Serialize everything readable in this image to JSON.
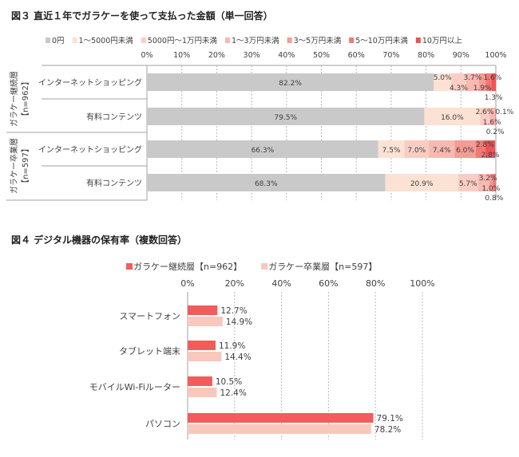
{
  "chart_data": [
    {
      "type": "bar",
      "stacked": true,
      "orientation": "horizontal",
      "title": "図３ 直近１年でガラケーを使って支払った金額（単一回答）",
      "xlim": [
        0,
        100
      ],
      "ticks": [
        "0%",
        "10%",
        "20%",
        "30%",
        "40%",
        "50%",
        "60%",
        "70%",
        "80%",
        "90%",
        "100%"
      ],
      "legend_position": "top",
      "groups": [
        {
          "label": "ガラケー継続層",
          "n": "【n=962】"
        },
        {
          "label": "ガラケー卒業層",
          "n": "【n=597】"
        }
      ],
      "categories": [
        "インターネットショッピング",
        "有料コンテンツ",
        "インターネットショッピング",
        "有料コンテンツ"
      ],
      "category_groups": [
        0,
        0,
        1,
        1
      ],
      "series": [
        {
          "name": "0円",
          "color": "#c9c9c9",
          "values": [
            82.2,
            79.5,
            66.3,
            68.3
          ]
        },
        {
          "name": "1～5000円未満",
          "color": "#fbe2d4",
          "values": [
            5.0,
            16.0,
            7.5,
            20.9
          ]
        },
        {
          "name": "5000円～1万円未満",
          "color": "#f9cdc4",
          "values": [
            4.3,
            2.6,
            7.0,
            5.7
          ]
        },
        {
          "name": "1～3万円未満",
          "color": "#f7b9b1",
          "values": [
            3.7,
            1.6,
            7.4,
            3.2
          ]
        },
        {
          "name": "3～5万円未満",
          "color": "#f59c94",
          "values": [
            1.9,
            0.2,
            6.0,
            1.0
          ]
        },
        {
          "name": "5～10万円未満",
          "color": "#f27875",
          "values": [
            1.6,
            0.1,
            2.8,
            0.8
          ]
        },
        {
          "name": "10万円以上",
          "color": "#ee5252",
          "values": [
            1.3,
            0,
            2.8,
            0
          ]
        }
      ]
    },
    {
      "type": "bar",
      "orientation": "horizontal",
      "title": "図４ デジタル機器の保有率（複数回答）",
      "xlim": [
        0,
        100
      ],
      "ticks": [
        "0%",
        "20%",
        "40%",
        "60%",
        "80%",
        "100%"
      ],
      "legend_position": "top",
      "categories": [
        "スマートフォン",
        "タブレット端末",
        "モバイルWi-Fiルーター",
        "パソコン"
      ],
      "series": [
        {
          "name": "ガラケー継続層【n=962】",
          "color": "#f25c5c",
          "values": [
            12.7,
            11.9,
            10.5,
            79.1
          ]
        },
        {
          "name": "ガラケー卒業層【n=597】",
          "color": "#f8c8bd",
          "values": [
            14.9,
            14.4,
            12.4,
            78.2
          ]
        }
      ]
    }
  ]
}
